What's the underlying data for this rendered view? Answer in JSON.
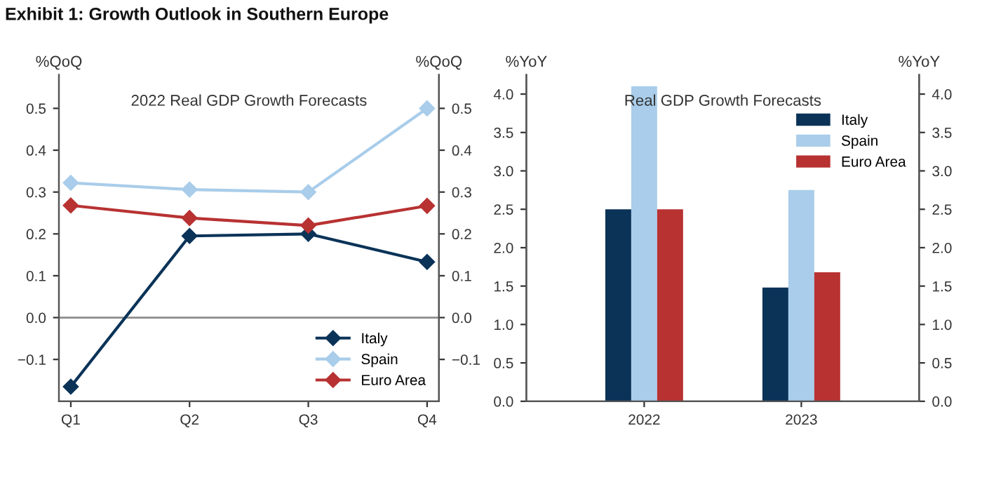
{
  "chart_data": [
    {
      "type": "line",
      "title": "2022 Real GDP Growth Forecasts",
      "ylabel": "%QoQ",
      "y2label": "%QoQ",
      "annotations": [
        "Exhibit 1: Growth Outlook in Southern Europe"
      ],
      "categories": [
        "Q1",
        "Q2",
        "Q3",
        "Q4"
      ],
      "series": [
        {
          "name": "Italy",
          "color": "#0b3358",
          "values": [
            -0.165,
            0.195,
            0.2,
            0.133
          ]
        },
        {
          "name": "Spain",
          "color": "#a9cdea",
          "values": [
            0.322,
            0.306,
            0.3,
            0.5
          ]
        },
        {
          "name": "Euro Area",
          "color": "#b83232",
          "values": [
            0.268,
            0.238,
            0.22,
            0.267
          ]
        }
      ],
      "ylim": [
        -0.2,
        0.58
      ],
      "yticks": [
        {
          "value": -0.1,
          "label": "−0.1"
        },
        {
          "value": 0.0,
          "label": "0.0"
        },
        0.1,
        0.2,
        0.3,
        0.4,
        0.5
      ],
      "y2lim": [
        -0.2,
        0.58
      ],
      "y2ticks": [
        {
          "value": -0.1,
          "label": "−0.1"
        },
        {
          "value": 0.0,
          "label": "0.0"
        },
        0.1,
        0.2,
        0.3,
        0.4,
        0.5
      ],
      "ref_lines": [
        {
          "axis": "y",
          "value": 0,
          "color": "#8c8c8c"
        }
      ],
      "marker": "diamond",
      "line_style": "solid",
      "legend": "bottom right",
      "grid": false
    },
    {
      "type": "bar",
      "title": "Real GDP Growth Forecasts",
      "ylabel": "%YoY",
      "y2label": "%YoY",
      "categories": [
        "2022",
        "2023"
      ],
      "series": [
        {
          "name": "Italy",
          "color": "#0b3358",
          "values": [
            2.5,
            1.48
          ]
        },
        {
          "name": "Spain",
          "color": "#a9cdea",
          "values": [
            4.1,
            2.75
          ]
        },
        {
          "name": "Euro Area",
          "color": "#b83232",
          "values": [
            2.5,
            1.68
          ]
        }
      ],
      "ylim": [
        0,
        4.25
      ],
      "yticks": [
        {
          "value": 0,
          "label": "0.0"
        },
        0.5,
        {
          "value": 1,
          "label": "1.0"
        },
        1.5,
        {
          "value": 2,
          "label": "2.0"
        },
        2.5,
        {
          "value": 3,
          "label": "3.0"
        },
        3.5,
        {
          "value": 4,
          "label": "4.0"
        }
      ],
      "y2lim": [
        0,
        4.25
      ],
      "y2ticks": [
        {
          "value": 0,
          "label": "0.0"
        },
        0.5,
        {
          "value": 1,
          "label": "1.0"
        },
        1.5,
        {
          "value": 2,
          "label": "2.0"
        },
        2.5,
        {
          "value": 3,
          "label": "3.0"
        },
        3.5,
        {
          "value": 4,
          "label": "4.0"
        }
      ],
      "legend": "top right",
      "grid": false
    }
  ]
}
